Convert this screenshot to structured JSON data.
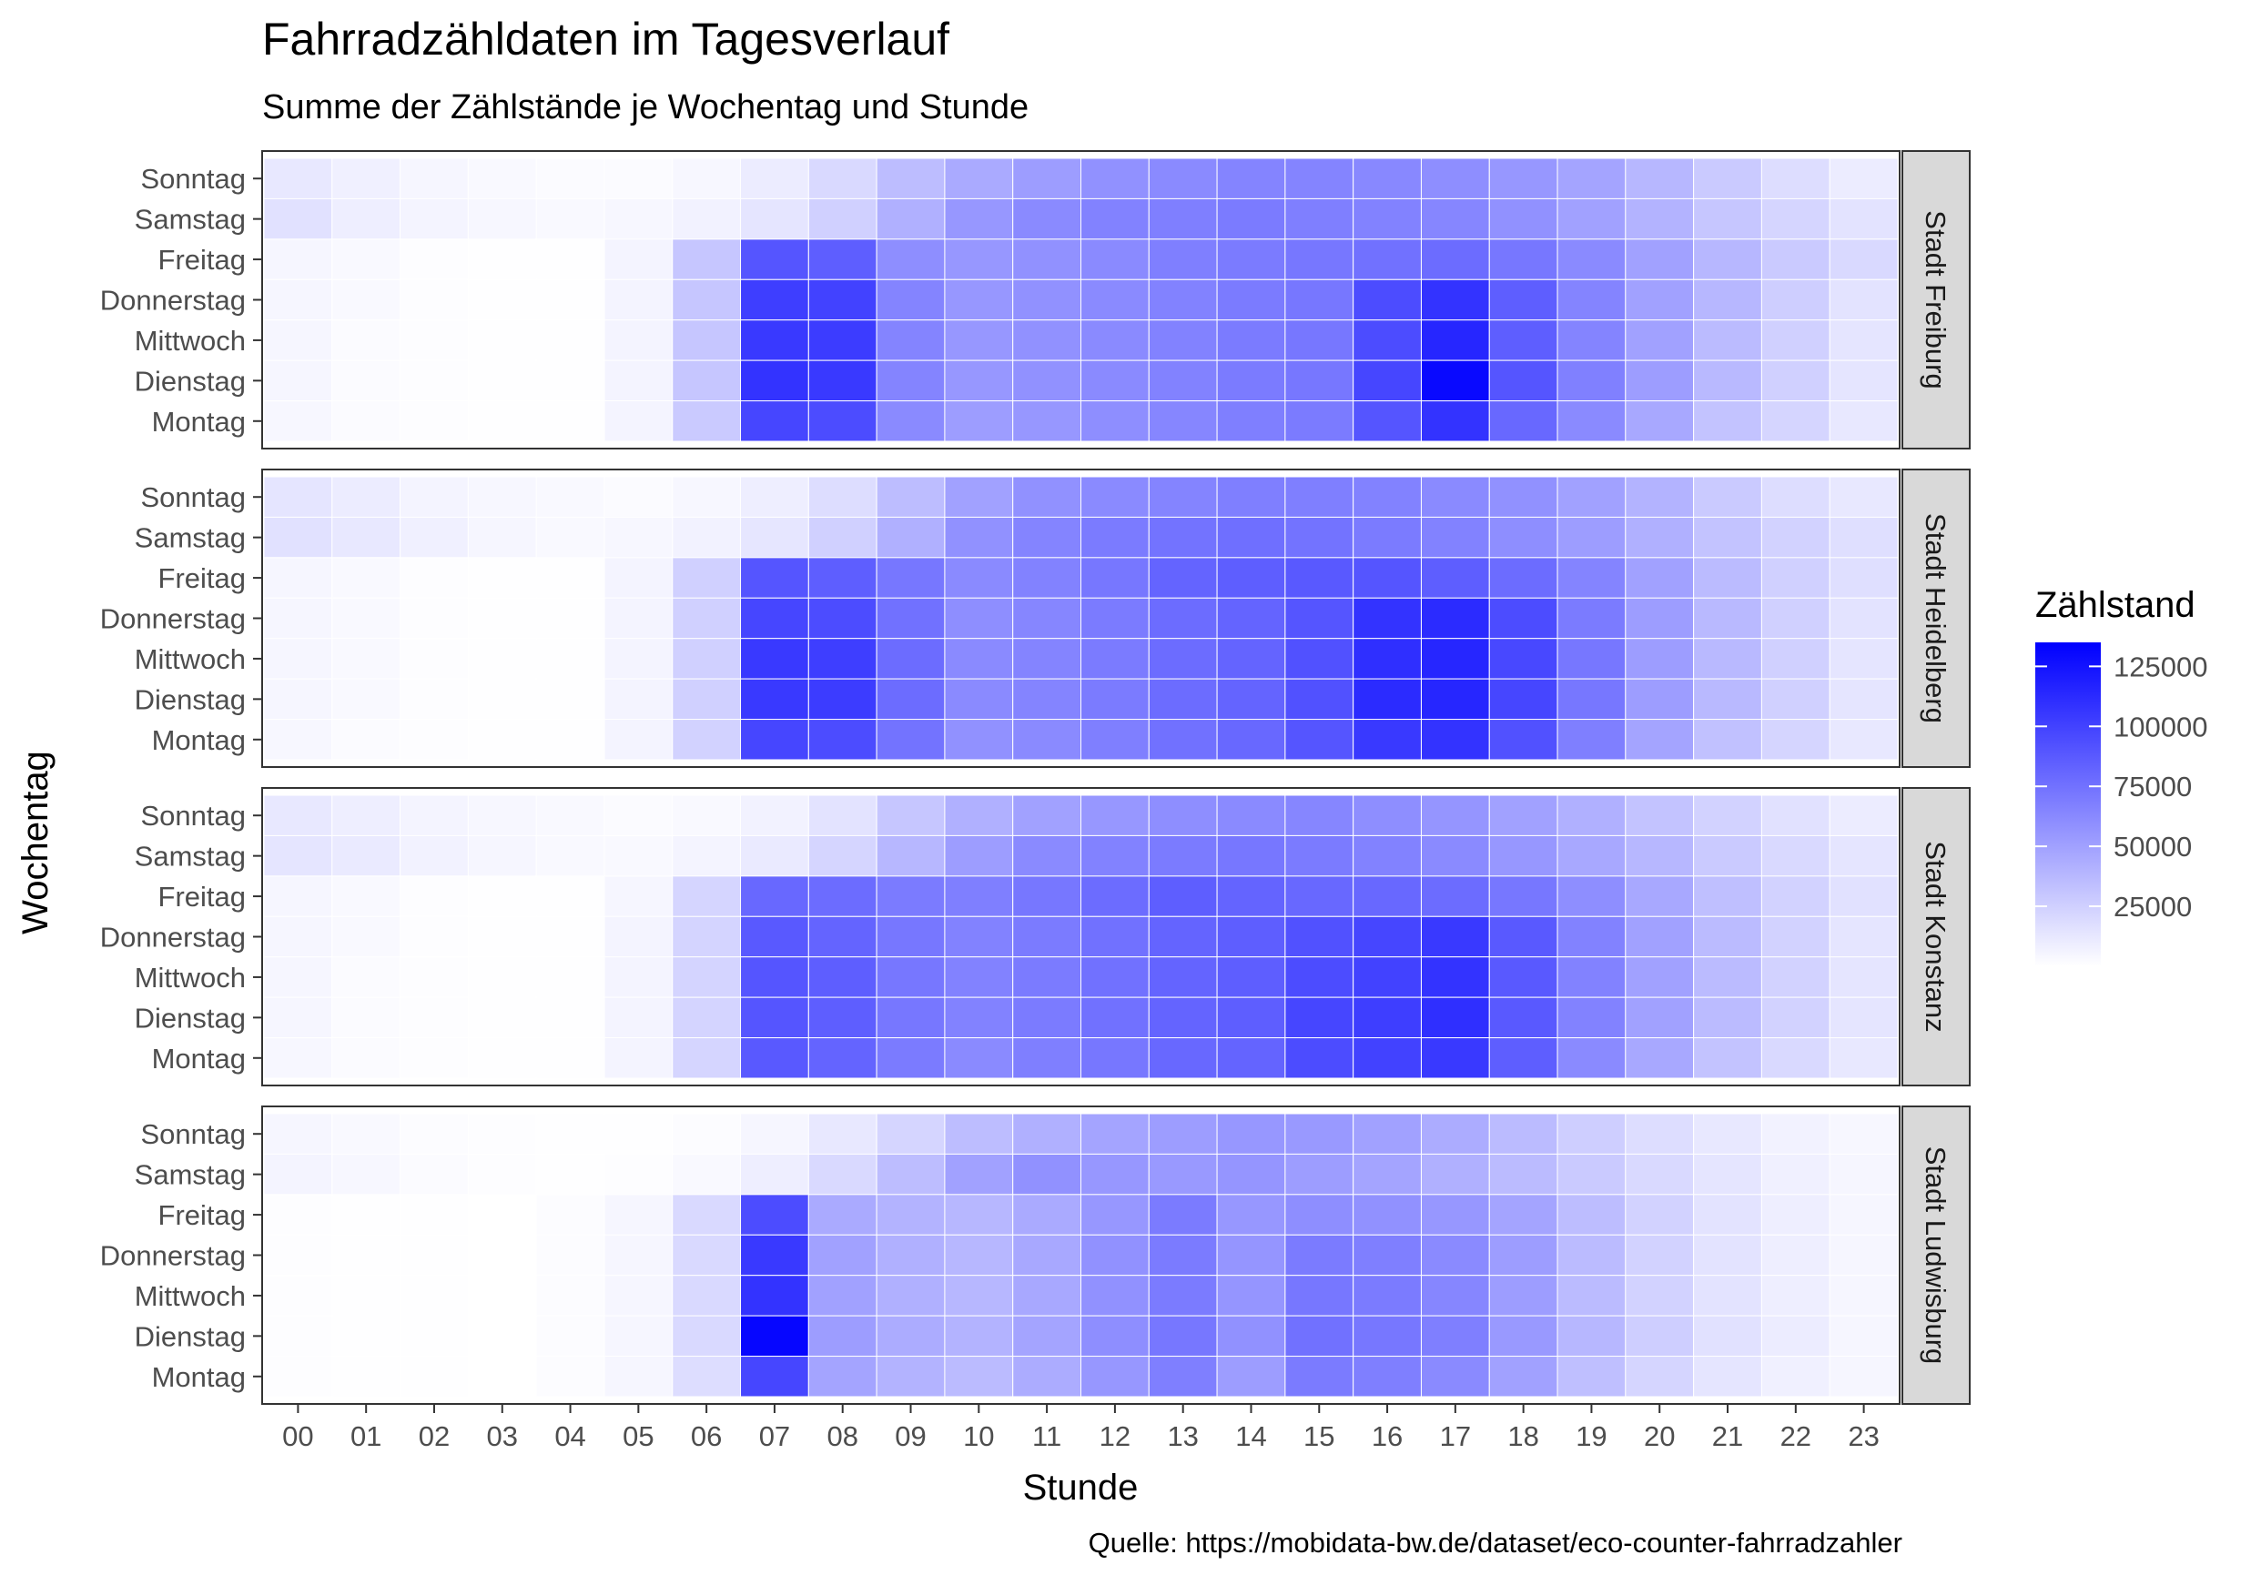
{
  "chart_data": {
    "type": "heatmap",
    "title": "Fahrradzähldaten im Tagesverlauf",
    "subtitle": "Summe der Zählstände je Wochentag und Stunde",
    "xlabel": "Stunde",
    "ylabel": "Wochentag",
    "caption": "Quelle: https://mobidata-bw.de/dataset/eco-counter-fahrradzahler",
    "x": [
      "00",
      "01",
      "02",
      "03",
      "04",
      "05",
      "06",
      "07",
      "08",
      "09",
      "10",
      "11",
      "12",
      "13",
      "14",
      "15",
      "16",
      "17",
      "18",
      "19",
      "20",
      "21",
      "22",
      "23"
    ],
    "y": [
      "Sonntag",
      "Samstag",
      "Freitag",
      "Donnerstag",
      "Mittwoch",
      "Dienstag",
      "Montag"
    ],
    "legend": {
      "title": "Zählstand",
      "breaks": [
        125000,
        100000,
        75000,
        50000,
        25000
      ],
      "break_labels": [
        "125000",
        "100000",
        "75000",
        "50000",
        "25000"
      ],
      "range": [
        0,
        135000
      ],
      "low_color": "#ffffff",
      "high_color": "#0000ff"
    },
    "panels": [
      {
        "name": "Stadt Freiburg",
        "values": [
          [
            12000,
            8000,
            5000,
            3000,
            2000,
            2000,
            4000,
            10000,
            20000,
            35000,
            45000,
            52000,
            58000,
            62000,
            65000,
            65000,
            63000,
            60000,
            55000,
            48000,
            38000,
            28000,
            18000,
            10000
          ],
          [
            16000,
            9000,
            6000,
            4000,
            3000,
            4000,
            7000,
            14000,
            25000,
            42000,
            55000,
            62000,
            66000,
            68000,
            70000,
            68000,
            66000,
            64000,
            58000,
            50000,
            40000,
            30000,
            22000,
            15000
          ],
          [
            5000,
            3000,
            1000,
            500,
            500,
            6000,
            30000,
            90000,
            85000,
            60000,
            55000,
            58000,
            62000,
            68000,
            70000,
            72000,
            75000,
            78000,
            72000,
            62000,
            50000,
            38000,
            28000,
            20000
          ],
          [
            5000,
            3000,
            1000,
            500,
            500,
            6000,
            30000,
            102000,
            100000,
            65000,
            55000,
            58000,
            62000,
            66000,
            70000,
            72000,
            95000,
            108000,
            85000,
            65000,
            50000,
            38000,
            26000,
            15000
          ],
          [
            5000,
            2000,
            800,
            400,
            400,
            6000,
            30000,
            105000,
            103000,
            65000,
            55000,
            58000,
            62000,
            66000,
            70000,
            72000,
            95000,
            115000,
            85000,
            65000,
            50000,
            36000,
            25000,
            14000
          ],
          [
            5000,
            2000,
            800,
            400,
            400,
            6000,
            30000,
            108000,
            105000,
            65000,
            55000,
            58000,
            62000,
            66000,
            70000,
            72000,
            98000,
            130000,
            90000,
            67000,
            52000,
            37000,
            25000,
            14000
          ],
          [
            4000,
            2000,
            800,
            400,
            400,
            6000,
            28000,
            98000,
            95000,
            62000,
            52000,
            55000,
            60000,
            64000,
            68000,
            70000,
            90000,
            108000,
            80000,
            62000,
            46000,
            32000,
            22000,
            12000
          ]
        ]
      },
      {
        "name": "Stadt Heidelberg",
        "values": [
          [
            14000,
            10000,
            6000,
            4000,
            3000,
            2000,
            4000,
            9000,
            18000,
            35000,
            50000,
            58000,
            62000,
            65000,
            68000,
            68000,
            66000,
            62000,
            58000,
            50000,
            40000,
            28000,
            18000,
            12000
          ],
          [
            16000,
            12000,
            8000,
            5000,
            3000,
            4000,
            7000,
            13000,
            25000,
            42000,
            58000,
            65000,
            70000,
            74000,
            76000,
            74000,
            70000,
            66000,
            60000,
            52000,
            42000,
            32000,
            24000,
            17000
          ],
          [
            5000,
            3000,
            1000,
            500,
            500,
            6000,
            25000,
            90000,
            85000,
            72000,
            62000,
            66000,
            72000,
            82000,
            85000,
            88000,
            90000,
            85000,
            78000,
            65000,
            50000,
            36000,
            25000,
            17000
          ],
          [
            5000,
            3000,
            1000,
            500,
            500,
            6000,
            25000,
            98000,
            95000,
            75000,
            60000,
            64000,
            70000,
            78000,
            82000,
            90000,
            108000,
            112000,
            95000,
            70000,
            52000,
            37000,
            25000,
            15000
          ],
          [
            5000,
            3000,
            1000,
            500,
            500,
            6000,
            25000,
            105000,
            102000,
            78000,
            62000,
            65000,
            70000,
            78000,
            82000,
            92000,
            110000,
            115000,
            97000,
            72000,
            52000,
            37000,
            25000,
            14000
          ],
          [
            5000,
            3000,
            1000,
            500,
            500,
            6000,
            25000,
            105000,
            103000,
            78000,
            62000,
            65000,
            70000,
            78000,
            82000,
            92000,
            112000,
            115000,
            98000,
            72000,
            52000,
            37000,
            25000,
            14000
          ],
          [
            4000,
            2000,
            800,
            400,
            400,
            6000,
            24000,
            98000,
            95000,
            74000,
            58000,
            62000,
            68000,
            75000,
            80000,
            90000,
            105000,
            108000,
            92000,
            68000,
            48000,
            33000,
            22000,
            12000
          ]
        ]
      },
      {
        "name": "Stadt Konstanz",
        "values": [
          [
            12000,
            9000,
            6000,
            4000,
            3000,
            2000,
            3000,
            7000,
            15000,
            30000,
            42000,
            50000,
            55000,
            60000,
            62000,
            64000,
            60000,
            56000,
            50000,
            42000,
            32000,
            24000,
            16000,
            10000
          ],
          [
            14000,
            11000,
            7000,
            5000,
            3000,
            3000,
            6000,
            11000,
            22000,
            38000,
            52000,
            62000,
            66000,
            70000,
            72000,
            70000,
            66000,
            62000,
            55000,
            46000,
            38000,
            28000,
            20000,
            14000
          ],
          [
            5000,
            3000,
            1000,
            500,
            500,
            5000,
            22000,
            80000,
            78000,
            70000,
            68000,
            72000,
            78000,
            85000,
            82000,
            80000,
            80000,
            78000,
            72000,
            60000,
            46000,
            34000,
            24000,
            16000
          ],
          [
            5000,
            3000,
            1000,
            500,
            500,
            6000,
            23000,
            88000,
            82000,
            72000,
            66000,
            70000,
            75000,
            82000,
            85000,
            92000,
            98000,
            105000,
            88000,
            66000,
            50000,
            36000,
            24000,
            14000
          ],
          [
            5000,
            2000,
            800,
            400,
            400,
            6000,
            23000,
            90000,
            85000,
            72000,
            66000,
            70000,
            75000,
            82000,
            85000,
            95000,
            100000,
            108000,
            88000,
            66000,
            50000,
            36000,
            24000,
            14000
          ],
          [
            5000,
            2000,
            800,
            400,
            400,
            6000,
            23000,
            90000,
            85000,
            72000,
            66000,
            70000,
            75000,
            82000,
            85000,
            98000,
            102000,
            110000,
            88000,
            66000,
            50000,
            36000,
            24000,
            14000
          ],
          [
            4000,
            2000,
            800,
            400,
            400,
            6000,
            22000,
            88000,
            82000,
            70000,
            62000,
            68000,
            72000,
            80000,
            82000,
            95000,
            100000,
            105000,
            85000,
            62000,
            46000,
            32000,
            20000,
            12000
          ]
        ]
      },
      {
        "name": "Stadt Ludwisburg",
        "values": [
          [
            5000,
            3000,
            1500,
            800,
            500,
            500,
            1500,
            5000,
            12000,
            22000,
            35000,
            42000,
            48000,
            52000,
            55000,
            54000,
            50000,
            44000,
            36000,
            26000,
            18000,
            12000,
            7000,
            4000
          ],
          [
            6000,
            4000,
            2000,
            1000,
            500,
            1000,
            3000,
            9000,
            20000,
            35000,
            50000,
            58000,
            55000,
            54000,
            56000,
            52000,
            48000,
            42000,
            36000,
            28000,
            20000,
            14000,
            8000,
            5000
          ],
          [
            1000,
            500,
            300,
            200,
            1500,
            5000,
            20000,
            95000,
            45000,
            40000,
            38000,
            45000,
            55000,
            70000,
            55000,
            60000,
            58000,
            55000,
            48000,
            35000,
            24000,
            15000,
            9000,
            5000
          ],
          [
            1000,
            500,
            300,
            200,
            1500,
            5000,
            20000,
            105000,
            50000,
            42000,
            38000,
            46000,
            58000,
            70000,
            56000,
            70000,
            68000,
            62000,
            52000,
            36000,
            24000,
            15000,
            9000,
            5000
          ],
          [
            1000,
            500,
            300,
            200,
            1500,
            5000,
            20000,
            108000,
            50000,
            42000,
            38000,
            46000,
            58000,
            70000,
            56000,
            72000,
            70000,
            64000,
            52000,
            36000,
            24000,
            15000,
            9000,
            5000
          ],
          [
            1000,
            500,
            300,
            200,
            1500,
            5000,
            20000,
            132000,
            52000,
            44000,
            40000,
            48000,
            60000,
            72000,
            58000,
            75000,
            72000,
            68000,
            54000,
            38000,
            26000,
            16000,
            10000,
            5000
          ],
          [
            1000,
            500,
            300,
            200,
            1500,
            5000,
            18000,
            98000,
            48000,
            40000,
            36000,
            44000,
            55000,
            68000,
            52000,
            70000,
            68000,
            62000,
            50000,
            34000,
            22000,
            14000,
            8000,
            5000
          ]
        ]
      }
    ]
  }
}
